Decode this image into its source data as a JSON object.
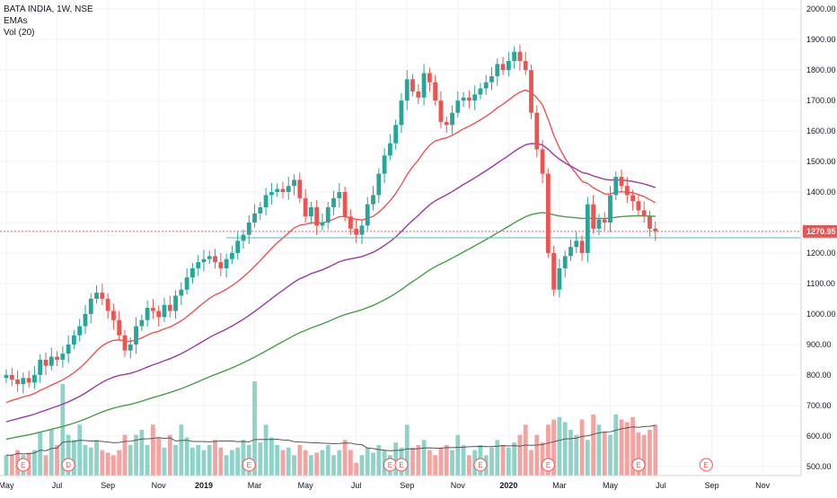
{
  "header": {
    "symbol_line": "BATA INDIA, 1W, NSE",
    "indicator_1": "EMAs",
    "indicator_2": "Vol (20)"
  },
  "current_price_label": "1270.95",
  "colors": {
    "up": "#26a69a",
    "down": "#ef5350",
    "vol_up": "#8fd3c8",
    "vol_down": "#f5a3a1",
    "ema_short": "#ef5350",
    "ema_mid": "#9c3aa5",
    "ema_long": "#43a047",
    "support_line": "#5bb8c9",
    "vol_ma": "#555555"
  },
  "chart_data": {
    "type": "candlestick",
    "y_axis": {
      "min": 470,
      "max": 2030,
      "ticks": [
        "500.00",
        "600.00",
        "700.00",
        "800.00",
        "900.00",
        "1000.00",
        "1100.00",
        "1200.00",
        "1300.00",
        "1400.00",
        "1500.00",
        "1600.00",
        "1700.00",
        "1800.00",
        "1900.00",
        "2000.00"
      ]
    },
    "x_axis": {
      "labels": [
        {
          "text": "May",
          "week": 0,
          "bold": false
        },
        {
          "text": "Jul",
          "week": 9,
          "bold": false
        },
        {
          "text": "Sep",
          "week": 18,
          "bold": false
        },
        {
          "text": "Nov",
          "week": 27,
          "bold": false
        },
        {
          "text": "2019",
          "week": 35,
          "bold": true
        },
        {
          "text": "Mar",
          "week": 44,
          "bold": false
        },
        {
          "text": "May",
          "week": 53,
          "bold": false
        },
        {
          "text": "Jul",
          "week": 62,
          "bold": false
        },
        {
          "text": "Sep",
          "week": 71,
          "bold": false
        },
        {
          "text": "Nov",
          "week": 80,
          "bold": false
        },
        {
          "text": "2020",
          "week": 89,
          "bold": true
        },
        {
          "text": "Mar",
          "week": 98,
          "bold": false
        },
        {
          "text": "May",
          "week": 107,
          "bold": false
        },
        {
          "text": "Jul",
          "week": 116,
          "bold": false
        },
        {
          "text": "Sep",
          "week": 125,
          "bold": false
        },
        {
          "text": "Nov",
          "week": 134,
          "bold": false
        }
      ]
    },
    "closes": [
      800,
      785,
      770,
      790,
      775,
      800,
      850,
      830,
      860,
      850,
      870,
      900,
      930,
      960,
      1000,
      1050,
      1070,
      1050,
      1010,
      980,
      930,
      880,
      900,
      960,
      980,
      1020,
      1010,
      990,
      1030,
      1010,
      1060,
      1080,
      1120,
      1150,
      1170,
      1180,
      1190,
      1170,
      1150,
      1180,
      1200,
      1240,
      1260,
      1300,
      1330,
      1350,
      1390,
      1400,
      1410,
      1400,
      1420,
      1440,
      1380,
      1320,
      1350,
      1290,
      1300,
      1350,
      1380,
      1400,
      1320,
      1280,
      1260,
      1290,
      1360,
      1390,
      1460,
      1520,
      1560,
      1620,
      1700,
      1770,
      1730,
      1710,
      1790,
      1760,
      1700,
      1630,
      1620,
      1660,
      1700,
      1710,
      1700,
      1720,
      1740,
      1760,
      1780,
      1820,
      1800,
      1830,
      1860,
      1830,
      1800,
      1660,
      1540,
      1460,
      1200,
      1080,
      1150,
      1190,
      1220,
      1240,
      1200,
      1360,
      1280,
      1310,
      1300,
      1390,
      1450,
      1420,
      1390,
      1370,
      1340,
      1320,
      1280,
      1271
    ],
    "volumes": [
      560,
      560,
      580,
      560,
      570,
      580,
      650,
      560,
      660,
      600,
      840,
      640,
      620,
      680,
      600,
      590,
      620,
      580,
      570,
      560,
      580,
      640,
      600,
      640,
      660,
      600,
      680,
      630,
      590,
      640,
      600,
      680,
      630,
      590,
      600,
      580,
      600,
      620,
      590,
      560,
      580,
      590,
      620,
      600,
      850,
      610,
      680,
      630,
      600,
      580,
      590,
      560,
      600,
      580,
      560,
      570,
      580,
      600,
      560,
      580,
      620,
      580,
      530,
      560,
      590,
      570,
      600,
      580,
      560,
      610,
      590,
      680,
      590,
      600,
      620,
      580,
      560,
      590,
      600,
      580,
      640,
      600,
      560,
      580,
      600,
      560,
      590,
      620,
      600,
      590,
      610,
      640,
      680,
      580,
      640,
      610,
      680,
      700,
      710,
      690,
      660,
      640,
      700,
      620,
      720,
      680,
      650,
      640,
      720,
      700,
      690,
      710,
      650,
      640,
      660,
      680
    ],
    "events": [
      {
        "label": "E",
        "week": 3
      },
      {
        "label": "D",
        "week": 11
      },
      {
        "label": "E",
        "week": 43
      },
      {
        "label": "E",
        "week": 68
      },
      {
        "label": "E",
        "week": 70
      },
      {
        "label": "E",
        "week": 84
      },
      {
        "label": "E",
        "week": 96
      },
      {
        "label": "E",
        "week": 112
      },
      {
        "label": "E",
        "week": 124
      }
    ],
    "support_line": {
      "start_week": 39,
      "value": 1250
    }
  }
}
